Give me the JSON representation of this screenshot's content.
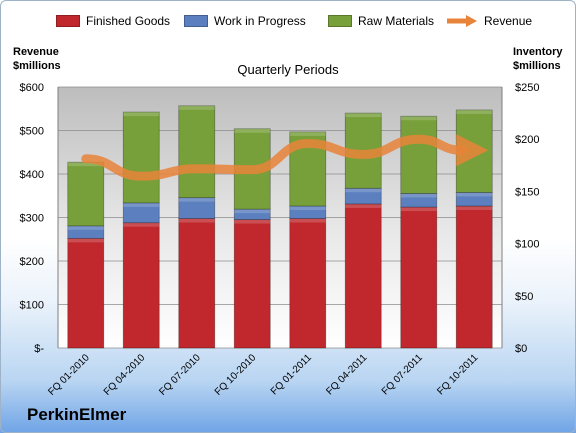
{
  "chart_data": {
    "type": "bar",
    "subtitle": "Quarterly Periods",
    "left_axis_title": [
      "Revenue",
      "$millions"
    ],
    "right_axis_title": [
      "Inventory",
      "$millions"
    ],
    "categories": [
      "FQ 01-2010",
      "FQ 04-2010",
      "FQ 07-2010",
      "FQ 10-2010",
      "FQ 01-2011",
      "FQ 04-2011",
      "FQ 07-2011",
      "FQ 10-2011"
    ],
    "series": [
      {
        "name": "Finished Goods",
        "axis": "right",
        "stacked": true,
        "color": "#c0282d",
        "values": [
          105,
          120,
          124,
          123,
          124,
          138,
          135,
          136
        ]
      },
      {
        "name": "Work in Progress",
        "axis": "right",
        "stacked": true,
        "color": "#5b7fbf",
        "values": [
          12,
          19,
          20,
          10,
          12,
          15,
          13,
          13
        ]
      },
      {
        "name": "Raw Materials",
        "axis": "right",
        "stacked": true,
        "color": "#77a03a",
        "values": [
          61,
          87,
          88,
          77,
          71,
          72,
          74,
          79
        ]
      },
      {
        "name": "Revenue",
        "axis": "left",
        "type": "line",
        "color": "#e8843a",
        "values": [
          435,
          395,
          412,
          410,
          470,
          445,
          480,
          450
        ]
      }
    ],
    "left_ticks": [
      "$-",
      "$100",
      "$200",
      "$300",
      "$400",
      "$500",
      "$600"
    ],
    "right_ticks": [
      "$0",
      "$50",
      "$100",
      "$150",
      "$200",
      "$250"
    ],
    "left_ylim": [
      0,
      600
    ],
    "right_ylim": [
      0,
      250
    ],
    "legend_position": "top",
    "grid": true
  },
  "brand": "PerkinElmer"
}
